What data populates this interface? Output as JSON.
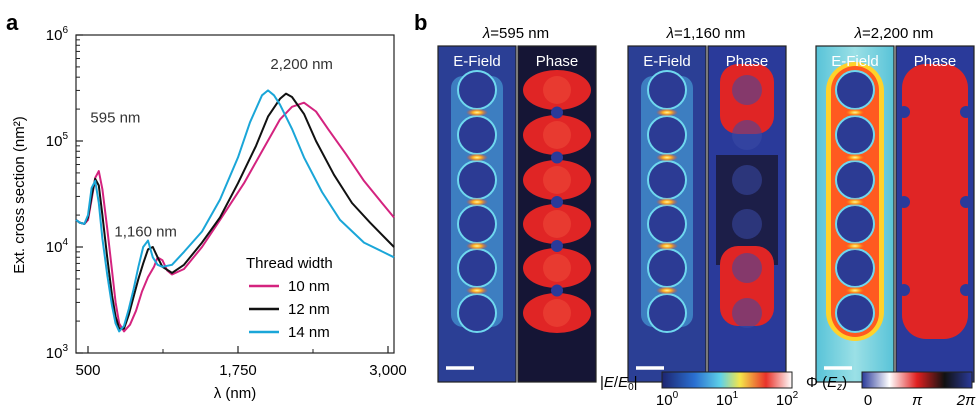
{
  "panel_labels": {
    "a": "a",
    "b": "b"
  },
  "chart_data": {
    "type": "line",
    "xlabel": "λ (nm)",
    "ylabel": "Ext. cross section (nm²)",
    "xlim": [
      400,
      3050
    ],
    "ylim": [
      1000,
      1000000
    ],
    "y_scale": "log",
    "x_ticks": [
      {
        "value": 500,
        "label": "500"
      },
      {
        "value": 1750,
        "label": "1,750"
      },
      {
        "value": 3000,
        "label": "3,000"
      }
    ],
    "y_ticks": [
      {
        "value": 1000,
        "base": "10",
        "exp": "3"
      },
      {
        "value": 10000,
        "base": "10",
        "exp": "4"
      },
      {
        "value": 100000,
        "base": "10",
        "exp": "5"
      },
      {
        "value": 1000000,
        "base": "10",
        "exp": "6"
      }
    ],
    "annotations": [
      {
        "text": "595 nm",
        "x": 520,
        "y": 150000
      },
      {
        "text": "1,160 nm",
        "x": 720,
        "y": 12500
      },
      {
        "text": "2,200 nm",
        "x": 2020,
        "y": 480000
      }
    ],
    "legend_title": "Thread width",
    "legend_placement": "bottom-right",
    "series": [
      {
        "name": "10 nm",
        "color": "#d4237f",
        "x": [
          400,
          430,
          470,
          500,
          530,
          560,
          590,
          620,
          660,
          700,
          730,
          760,
          800,
          850,
          900,
          950,
          1000,
          1050,
          1080,
          1120,
          1160,
          1200,
          1300,
          1450,
          1600,
          1800,
          1950,
          2100,
          2200,
          2300,
          2400,
          2500,
          2650,
          2800,
          2950,
          3050
        ],
        "y": [
          18000,
          17000,
          16500,
          18000,
          28000,
          45000,
          52000,
          35000,
          15000,
          6000,
          3000,
          1900,
          1600,
          1850,
          2500,
          3800,
          5200,
          6500,
          8000,
          7500,
          6000,
          5500,
          6200,
          10000,
          18000,
          40000,
          80000,
          160000,
          210000,
          230000,
          190000,
          130000,
          75000,
          42000,
          26000,
          19000
        ]
      },
      {
        "name": "12 nm",
        "color": "#111111",
        "x": [
          400,
          430,
          470,
          500,
          530,
          560,
          590,
          620,
          660,
          700,
          730,
          760,
          800,
          840,
          880,
          920,
          960,
          1000,
          1040,
          1080,
          1120,
          1200,
          1300,
          1450,
          1600,
          1750,
          1900,
          2000,
          2100,
          2150,
          2200,
          2300,
          2400,
          2550,
          2700,
          2850,
          3050
        ],
        "y": [
          18000,
          17000,
          16500,
          19000,
          30000,
          44000,
          38000,
          20000,
          8000,
          3500,
          2200,
          1700,
          1700,
          2300,
          3400,
          5000,
          7000,
          9500,
          10000,
          8000,
          6500,
          5700,
          6800,
          11000,
          19000,
          40000,
          90000,
          170000,
          250000,
          280000,
          260000,
          180000,
          100000,
          48000,
          26000,
          17000,
          10000
        ]
      },
      {
        "name": "14 nm",
        "color": "#1aa6d8",
        "x": [
          400,
          430,
          470,
          500,
          530,
          560,
          590,
          620,
          660,
          700,
          730,
          760,
          800,
          840,
          880,
          920,
          960,
          1000,
          1040,
          1080,
          1120,
          1200,
          1300,
          1450,
          1600,
          1750,
          1850,
          1950,
          2000,
          2050,
          2100,
          2200,
          2300,
          2450,
          2600,
          2800,
          3050
        ],
        "y": [
          18000,
          17000,
          16500,
          20000,
          36000,
          42000,
          26000,
          12000,
          5500,
          2800,
          1900,
          1600,
          1800,
          2600,
          4000,
          6500,
          10000,
          11500,
          8000,
          6800,
          6500,
          6800,
          9000,
          14000,
          28000,
          70000,
          150000,
          270000,
          300000,
          270000,
          220000,
          130000,
          70000,
          33000,
          18000,
          11000,
          8000
        ]
      }
    ]
  },
  "fields": {
    "titles": [
      "λ=595 nm",
      "λ=1,160 nm",
      "λ=2,200 nm"
    ],
    "left_label": "E-Field",
    "right_label": "Phase"
  },
  "colorbars": {
    "efield_label": "|E/E0|",
    "efield_ticks": [
      {
        "base": "10",
        "exp": "0"
      },
      {
        "base": "10",
        "exp": "1"
      },
      {
        "base": "10",
        "exp": "2"
      }
    ],
    "phase_label": "Φ (Ez)",
    "phase_ticks": [
      "0",
      "π",
      "2π"
    ]
  },
  "colors": {
    "field_bg": "#2b3f95",
    "phase_red": "#e02525",
    "phase_dark": "#1a1a3a",
    "hotspot": "#ffd21e"
  }
}
